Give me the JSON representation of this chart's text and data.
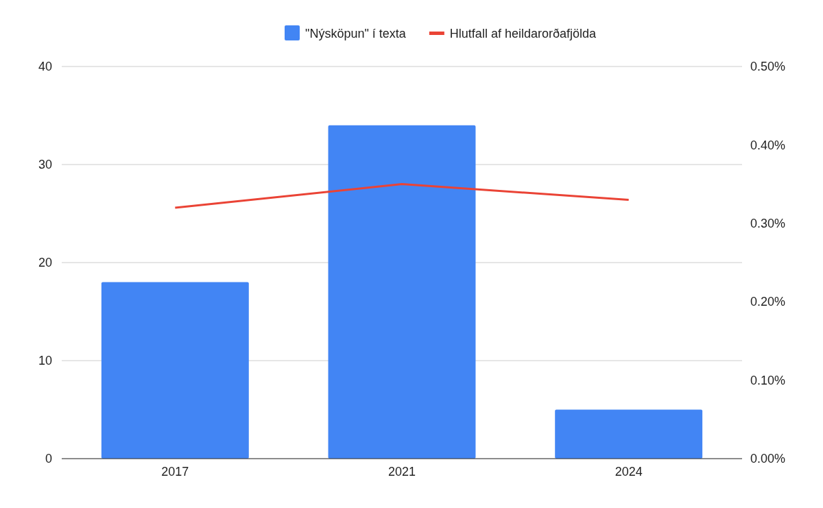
{
  "chart_data": {
    "type": "bar",
    "categories": [
      "2017",
      "2021",
      "2024"
    ],
    "series": [
      {
        "name": "\"Nýsköpun\" í texta",
        "color": "#4285f4",
        "values": [
          18,
          34,
          5
        ]
      },
      {
        "name": "Hlutfall af heildarorðafjölda",
        "color": "#ea4335",
        "type": "line",
        "axis": "y2",
        "values": [
          0.32,
          0.35,
          0.33
        ]
      }
    ],
    "ylim": [
      0,
      40
    ],
    "yticks": [
      0,
      10,
      20,
      30,
      40
    ],
    "y2lim": [
      0,
      0.5
    ],
    "y2ticks": [
      {
        "value": 0,
        "label": "0.00%"
      },
      {
        "value": 0.1,
        "label": "0.10%"
      },
      {
        "value": 0.2,
        "label": "0.20%"
      },
      {
        "value": 0.3,
        "label": "0.30%"
      },
      {
        "value": 0.4,
        "label": "0.40%"
      },
      {
        "value": 0.5,
        "label": "0.50%"
      }
    ],
    "grid": "y",
    "legend": "top",
    "marker": "none",
    "line_style": "solid"
  }
}
